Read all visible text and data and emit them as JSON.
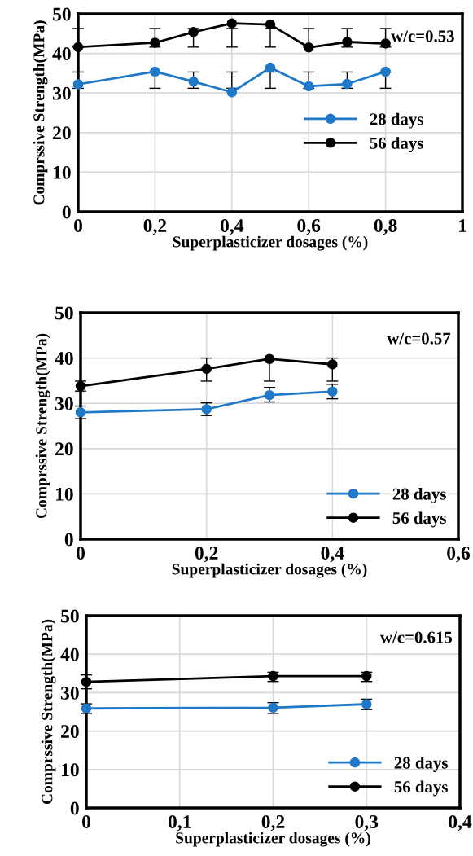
{
  "chart_data": [
    {
      "type": "line",
      "xlabel": "Superplasticizer dosages (%)",
      "ylabel": "Comprssive Strength(MPa)",
      "annotations": [
        "w/c=0.53"
      ],
      "x": [
        0,
        0.2,
        0.3,
        0.4,
        0.5,
        0.6,
        0.7,
        0.8
      ],
      "xlim": [
        0,
        1
      ],
      "xticks": [
        {
          "value": 0,
          "label": "0"
        },
        {
          "value": 0.2,
          "label": "0,2"
        },
        {
          "value": 0.4,
          "label": "0,4"
        },
        {
          "value": 0.6,
          "label": "0,6"
        },
        {
          "value": 0.8,
          "label": "0,8"
        },
        {
          "value": 1,
          "label": "1"
        }
      ],
      "ylim": [
        0,
        50
      ],
      "yticks": [
        0,
        10,
        20,
        30,
        40,
        50
      ],
      "grid": true,
      "legend": "center right",
      "marker": "circle",
      "line_style": "solid",
      "series": [
        {
          "name": "28 days",
          "color": "#1f78c8",
          "values": [
            32.2,
            35.4,
            32.9,
            30.2,
            36.4,
            31.7,
            32.3,
            35.4
          ],
          "errors": [
            [
              31.2,
              35.3
            ],
            [
              31.2,
              35.3
            ],
            [
              31.2,
              35.3
            ],
            [
              31.2,
              35.3
            ],
            [
              31.2,
              35.3
            ],
            [
              31.2,
              35.3
            ],
            [
              31.2,
              35.3
            ],
            [
              31.2,
              35.3
            ]
          ]
        },
        {
          "name": "56 days",
          "color": "#000000",
          "values": [
            41.6,
            42.7,
            45.4,
            47.6,
            47.3,
            41.5,
            42.9,
            42.5
          ],
          "errors": [
            [
              41.6,
              46.3
            ],
            [
              41.6,
              46.3
            ],
            [
              41.6,
              46.3
            ],
            [
              41.6,
              46.3
            ],
            [
              41.6,
              46.3
            ],
            [
              41.6,
              46.3
            ],
            [
              41.6,
              46.3
            ],
            [
              41.6,
              46.3
            ]
          ]
        }
      ]
    },
    {
      "type": "line",
      "xlabel": "Superplasticizer dosages (%)",
      "ylabel": "Comprssive Strength(MPa)",
      "annotations": [
        "w/c=0.57"
      ],
      "x": [
        0,
        0.2,
        0.3,
        0.4
      ],
      "xlim": [
        0,
        0.6
      ],
      "xticks": [
        {
          "value": 0,
          "label": "0"
        },
        {
          "value": 0.2,
          "label": "0,2"
        },
        {
          "value": 0.4,
          "label": "0,4"
        },
        {
          "value": 0.6,
          "label": "0,6"
        }
      ],
      "ylim": [
        0,
        50
      ],
      "yticks": [
        0,
        10,
        20,
        30,
        40,
        50
      ],
      "grid": true,
      "legend": "lower right",
      "marker": "circle",
      "line_style": "solid",
      "series": [
        {
          "name": "28 days",
          "color": "#1f78c8",
          "values": [
            28.0,
            28.7,
            31.8,
            32.6
          ],
          "errors": [
            [
              26.6,
              29.4
            ],
            [
              27.3,
              30.1
            ],
            [
              30.3,
              33.5
            ],
            [
              31.0,
              34.2
            ]
          ]
        },
        {
          "name": "56 days",
          "color": "#000000",
          "values": [
            33.8,
            37.6,
            39.8,
            38.6
          ],
          "errors": [
            [
              32.7,
              34.9
            ],
            [
              34.9,
              40.0
            ],
            [
              34.9,
              39.8
            ],
            [
              34.9,
              40.0
            ]
          ]
        }
      ]
    },
    {
      "type": "line",
      "xlabel": "Superplasticizer dosages (%)",
      "ylabel": "Comprssive Strength(MPa)",
      "annotations": [
        "w/c=0.615"
      ],
      "x": [
        0,
        0.2,
        0.3
      ],
      "xlim": [
        0,
        0.4
      ],
      "xticks": [
        {
          "value": 0,
          "label": "0"
        },
        {
          "value": 0.1,
          "label": "0,1"
        },
        {
          "value": 0.2,
          "label": "0,2"
        },
        {
          "value": 0.3,
          "label": "0,3"
        },
        {
          "value": 0.4,
          "label": "0,4"
        }
      ],
      "ylim": [
        0,
        50
      ],
      "yticks": [
        0,
        10,
        20,
        30,
        40,
        50
      ],
      "grid": true,
      "legend": "lower right",
      "marker": "circle",
      "line_style": "solid",
      "series": [
        {
          "name": "28 days",
          "color": "#1f78c8",
          "values": [
            25.9,
            26.1,
            27.0
          ],
          "errors": [
            [
              24.6,
              27.1
            ],
            [
              24.6,
              27.4
            ],
            [
              25.6,
              28.3
            ]
          ]
        },
        {
          "name": "56 days",
          "color": "#000000",
          "values": [
            32.8,
            34.3,
            34.3
          ],
          "errors": [
            [
              31.0,
              34.6
            ],
            [
              32.9,
              35.3
            ],
            [
              32.9,
              35.3
            ]
          ]
        }
      ]
    }
  ]
}
